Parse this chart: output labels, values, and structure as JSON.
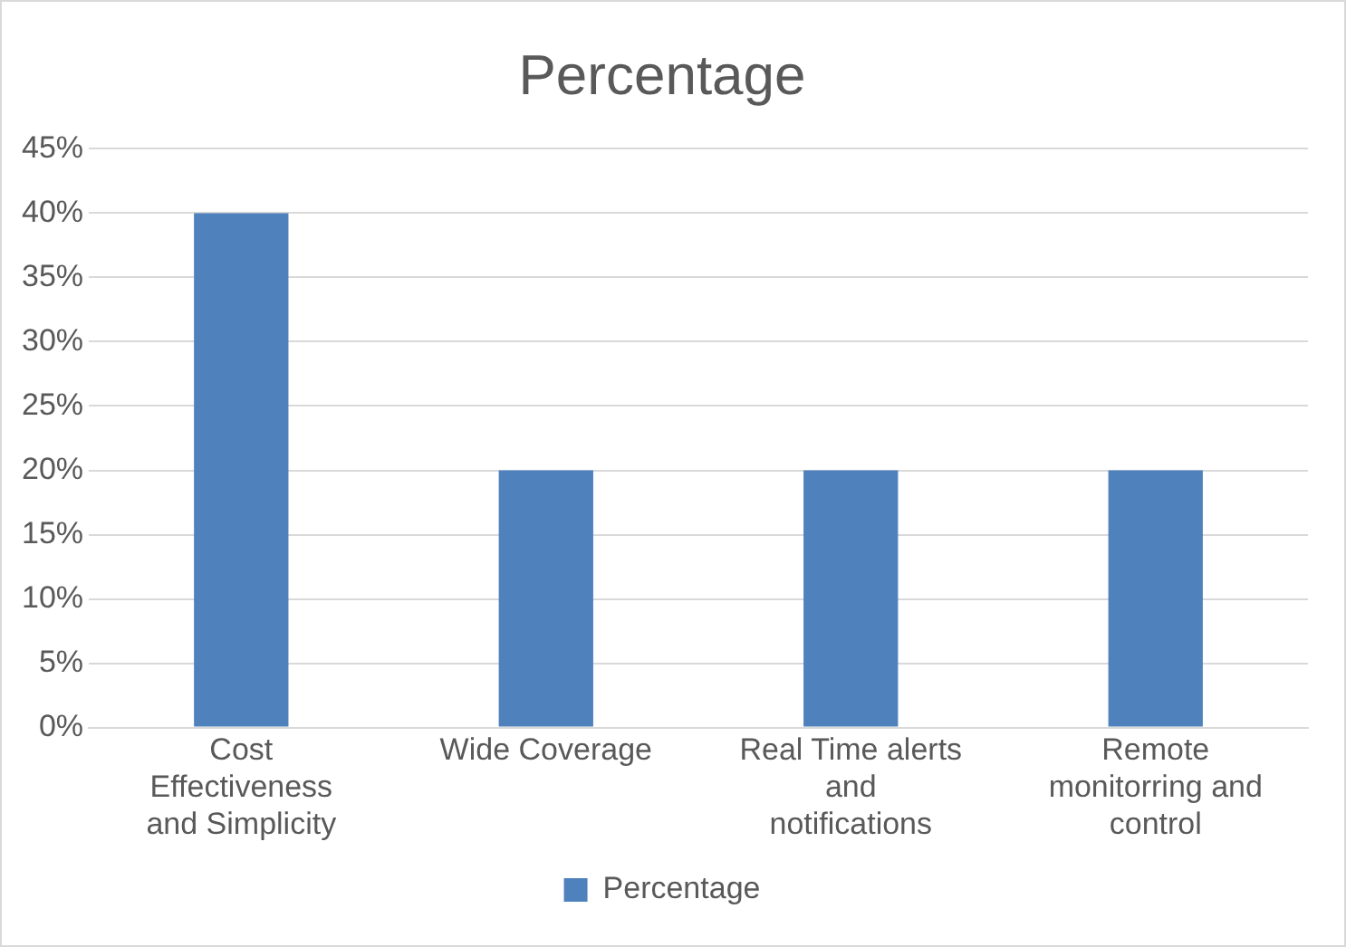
{
  "chart_data": {
    "type": "bar",
    "title": "Percentage",
    "categories": [
      "Cost Effectiveness and Simplicity",
      "Wide Coverage",
      "Real Time alerts and notifications",
      "Remote monitorring and control"
    ],
    "series": [
      {
        "name": "Percentage",
        "color": "#4f81bd",
        "values": [
          40,
          20,
          20,
          20
        ]
      }
    ],
    "ylim": [
      0,
      45
    ],
    "yticks": [
      {
        "value": 0,
        "label": "0%"
      },
      {
        "value": 5,
        "label": "5%"
      },
      {
        "value": 10,
        "label": "10%"
      },
      {
        "value": 15,
        "label": "15%"
      },
      {
        "value": 20,
        "label": "20%"
      },
      {
        "value": 25,
        "label": "25%"
      },
      {
        "value": 30,
        "label": "30%"
      },
      {
        "value": 35,
        "label": "35%"
      },
      {
        "value": 40,
        "label": "40%"
      },
      {
        "value": 45,
        "label": "45%"
      }
    ],
    "grid": "y",
    "legend": "bottom"
  }
}
